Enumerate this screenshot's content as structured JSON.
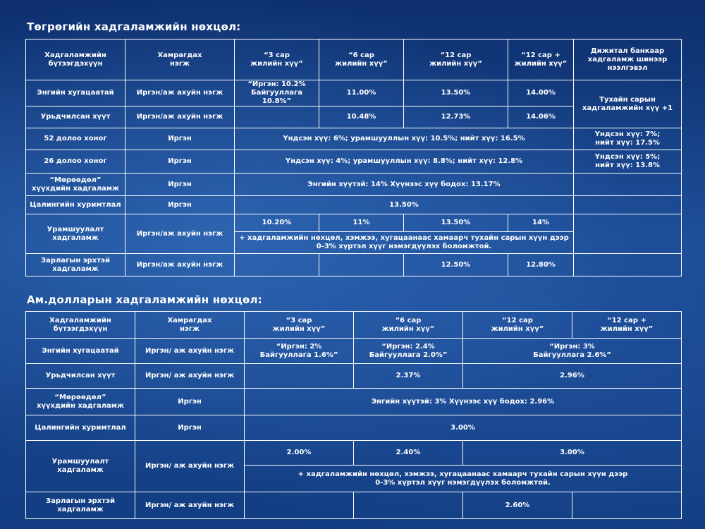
{
  "mnt": {
    "title": "Төгрөгийн хадгаламжийн нөхцөл:",
    "headers": [
      "Хадгаламжийн\nбүтээгдэхүүн",
      "Хамрагдах\nнэгж",
      "“3 сар\nжилийн хүү”",
      "“6 сар\nжилийн хүү”",
      "“12 сар\nжилийн хүү”",
      "“12 сар +\nжилийн хүү”",
      "Дижитал банкаар\nхадгаламж шинээр\nнээлгэвэл"
    ],
    "r1": {
      "name": "Энгийн хугацаатай",
      "unit": "Иргэн/аж ахуйн нэгж",
      "m3": "“Иргэн: 10.2%\nБайгууллага 10.8%”",
      "m6": "11.00%",
      "m12": "13.50%",
      "m12p": "14.00%"
    },
    "r2": {
      "name": "Урьдчилсан хүүт",
      "unit": "Иргэн/аж ахуйн нэгж",
      "m3": "",
      "m6": "10.48%",
      "m12": "12.73%",
      "m12p": "14.06%"
    },
    "digital_note": "Тухайн сарын\nхадгаламжийн хүү +1",
    "r3": {
      "name": "52 долоо хоног",
      "unit": "Иргэн",
      "rate": "Үндсэн хүү: 6%; урамшууллын хүү: 10.5%; нийт хүү: 16.5%",
      "digital": "Үндсэн хүү: 7%;\nнийт хүү: 17.5%"
    },
    "r4": {
      "name": "26 долоо хоног",
      "unit": "Иргэн",
      "rate": "Үндсэн хүү: 4%; урамшууллын хүү: 8.8%; нийт хүү: 12.8%",
      "digital": "Үндсэн хүү: 5%;\nнийт хүү: 13.8%"
    },
    "r5": {
      "name": "“Мөрөөдөл”\nхүүхдийн хадгаламж",
      "unit": "Иргэн",
      "rate": "Энгийн хүүтэй: 14%   Хүүнээс хүү бодох: 13.17%",
      "digital": ""
    },
    "r6": {
      "name": "Цалингийн хуримтлал",
      "unit": "Иргэн",
      "rate": "13.50%",
      "digital": ""
    },
    "r7": {
      "name": "Урамшуулалт\nхадгаламж",
      "unit": "Иргэн/аж ахуйн нэгж",
      "m3": "10.20%",
      "m6": "11%",
      "m12": "13.50%",
      "m12p": "14%",
      "note": "+ хадгаламжийн нөхцөл, хэмжээ, хугацаанаас хамаарч тухайн сарын хүүн дээр\n0-3% хүртэл хүүг нэмэгдүүлэх боломжтой.",
      "digital": ""
    },
    "r8": {
      "name": "Зарлагын эрхтэй\nхадгаламж",
      "unit": "Иргэн/аж ахуйн нэгж",
      "m3": "",
      "m6": "",
      "m12": "12.50%",
      "m12p": "12.80%",
      "digital": ""
    }
  },
  "usd": {
    "title": "Ам.долларын хадгаламжийн нөхцөл:",
    "headers": [
      "Хадгаламжийн\nбүтээгдэхүүн",
      "Хамрагдах\nнэгж",
      "“3 сар\nжилийн хүү”",
      "“6 сар\nжилийн хүү”",
      "“12 сар\nжилийн хүү”",
      "“12 сар +\nжилийн хүү”"
    ],
    "r1": {
      "name": "Энгийн хугацаатай",
      "unit": "Иргэн/ аж ахуйн нэгж",
      "m3": "“Иргэн: 2%\nБайгууллага 1.6%”",
      "m6": "“Иргэн: 2.4%\nБайгууллага 2.0%”",
      "m12": "“Иргэн: 3%\nБайгууллага 2.6%”"
    },
    "r2": {
      "name": "Урьдчилсан хүүт",
      "unit": "Иргэн/ аж ахуйн нэгж",
      "m3": "",
      "m6": "2.37%",
      "m12": "2.96%"
    },
    "r3": {
      "name": "“Мөрөөдөл”\nхүүхдийн хадгаламж",
      "unit": "Иргэн",
      "rate": "Энгийн хүүтэй: 3%   Хүүнээс хүү бодох: 2.96%"
    },
    "r4": {
      "name": "Цалингийн хуримтлал",
      "unit": "Иргэн",
      "rate": "3.00%"
    },
    "r5": {
      "name": "Урамшуулалт\nхадгаламж",
      "unit": "Иргэн/ аж ахуйн нэгж",
      "m3": "2.00%",
      "m6": "2.40%",
      "m12": "3.00%",
      "note": "+ хадгаламжийн нөхцөл, хэмжээ, хугацаанаас хамаарч тухайн сарын хүүн дээр\n0-3% хүртэл хүүг нэмэгдүүлэх боломжтой."
    },
    "r6": {
      "name": "Зарлагын эрхтэй\nхадгаламж",
      "unit": "Иргэн/ аж ахуйн нэгж",
      "m3": "",
      "m6": "",
      "m12": "2.60%",
      "m12p": ""
    }
  }
}
